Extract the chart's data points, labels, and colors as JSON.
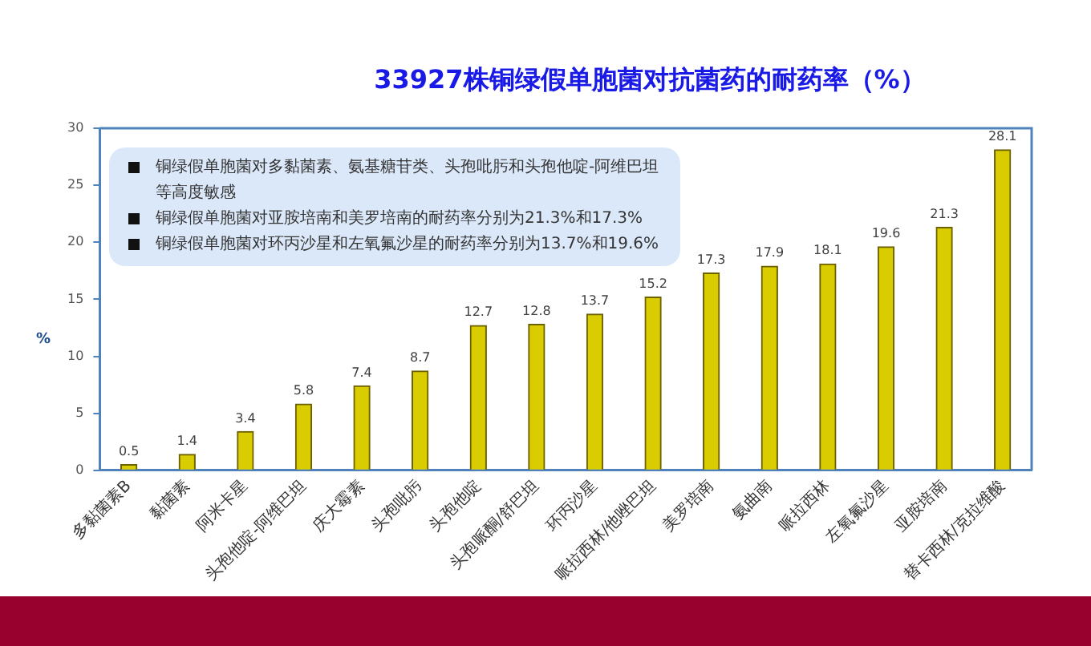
{
  "chart_data": {
    "type": "bar",
    "title": "33927株铜绿假单胞菌对抗菌药的耐药率（%）",
    "ylabel": "%",
    "categories": [
      "多黏菌素B",
      "黏菌素",
      "阿米卡星",
      "头孢他啶-阿维巴坦",
      "庆大霉素",
      "头孢吡肟",
      "头孢他啶",
      "头孢哌酮/舒巴坦",
      "环丙沙星",
      "哌拉西林/他唑巴坦",
      "美罗培南",
      "氨曲南",
      "哌拉西林",
      "左氧氟沙星",
      "亚胺培南",
      "替卡西林/克拉维酸"
    ],
    "values": [
      0.5,
      1.4,
      3.4,
      5.8,
      7.4,
      8.7,
      12.7,
      12.8,
      13.7,
      15.2,
      17.3,
      17.9,
      18.1,
      19.6,
      21.3,
      28.1
    ],
    "color": "#d9cc00",
    "ylim": [
      0,
      30
    ],
    "yticks": [
      0,
      5,
      10,
      15,
      20,
      25,
      30
    ],
    "grid": false,
    "legend": false,
    "data_labels": true,
    "annotations": [
      "铜绿假单胞菌对多黏菌素、氨基糖苷类、头孢吡肟和头孢他啶-阿维巴坦等高度敏感",
      "铜绿假单胞菌对亚胺培南和美罗培南的耐药率分别为21.3%和17.3%",
      "铜绿假单胞菌对环丙沙星和左氧氟沙星的耐药率分别为13.7%和19.6%"
    ]
  }
}
